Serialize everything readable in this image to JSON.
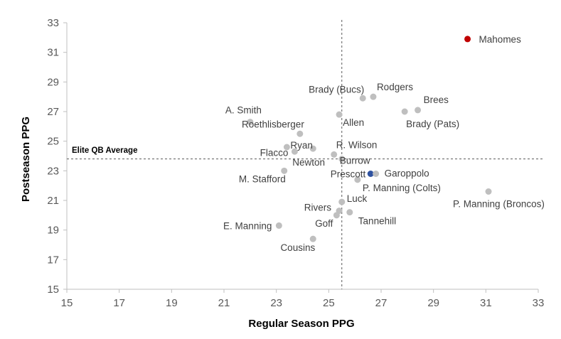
{
  "chart_data": {
    "type": "scatter",
    "title": "",
    "xlabel": "Regular Season PPG",
    "ylabel": "Postseason PPG",
    "xlim": [
      15,
      33
    ],
    "ylim": [
      15,
      33
    ],
    "xticks": [
      15,
      17,
      19,
      21,
      23,
      25,
      27,
      29,
      31,
      33
    ],
    "yticks": [
      15,
      17,
      19,
      21,
      23,
      25,
      27,
      29,
      31,
      33
    ],
    "grid": false,
    "colors": {
      "default": "#bfbfbf",
      "highlight_red": "#c00000",
      "highlight_blue": "#2f52a0"
    },
    "reference_lines": {
      "horizontal": {
        "y": 23.8,
        "label": "Elite QB Average"
      },
      "vertical": {
        "x": 25.5
      }
    },
    "points": [
      {
        "label": "Mahomes",
        "x": 30.3,
        "y": 31.9,
        "color": "#c00000"
      },
      {
        "label": "Rodgers",
        "x": 26.7,
        "y": 28.0,
        "color": "#bfbfbf"
      },
      {
        "label": "Brady (Bucs)",
        "x": 26.3,
        "y": 27.9,
        "color": "#bfbfbf"
      },
      {
        "label": "Brees",
        "x": 28.4,
        "y": 27.1,
        "color": "#bfbfbf"
      },
      {
        "label": "Brady (Pats)",
        "x": 27.9,
        "y": 27.0,
        "color": "#bfbfbf"
      },
      {
        "label": "Allen",
        "x": 25.4,
        "y": 26.8,
        "color": "#bfbfbf"
      },
      {
        "label": "A. Smith",
        "x": 22.0,
        "y": 26.3,
        "color": "#bfbfbf"
      },
      {
        "label": "Roethlisberger",
        "x": 23.9,
        "y": 25.5,
        "color": "#bfbfbf"
      },
      {
        "label": "Ryan",
        "x": 23.4,
        "y": 24.6,
        "color": "#bfbfbf"
      },
      {
        "label": "Flacco",
        "x": 23.7,
        "y": 24.3,
        "color": "#bfbfbf"
      },
      {
        "label": "R. Wilson",
        "x": 25.2,
        "y": 24.1,
        "color": "#bfbfbf"
      },
      {
        "label": "Burrow",
        "x": 25.5,
        "y": 23.8,
        "color": "#bfbfbf"
      },
      {
        "label": "Newton",
        "x": 24.4,
        "y": 24.5,
        "color": "#bfbfbf"
      },
      {
        "label": "M. Stafford",
        "x": 23.3,
        "y": 23.0,
        "color": "#bfbfbf"
      },
      {
        "label": "Prescott",
        "x": 26.6,
        "y": 22.8,
        "color": "#2f52a0"
      },
      {
        "label": "Garoppolo",
        "x": 26.8,
        "y": 22.8,
        "color": "#bfbfbf"
      },
      {
        "label": "P. Manning (Colts)",
        "x": 26.1,
        "y": 22.4,
        "color": "#bfbfbf"
      },
      {
        "label": "P. Manning (Broncos)",
        "x": 31.1,
        "y": 21.6,
        "color": "#bfbfbf"
      },
      {
        "label": "Luck",
        "x": 25.5,
        "y": 20.9,
        "color": "#bfbfbf"
      },
      {
        "label": "Rivers",
        "x": 25.4,
        "y": 20.3,
        "color": "#bfbfbf"
      },
      {
        "label": "Tannehill",
        "x": 25.8,
        "y": 20.2,
        "color": "#bfbfbf"
      },
      {
        "label": "Goff",
        "x": 25.3,
        "y": 20.0,
        "color": "#bfbfbf"
      },
      {
        "label": "E. Manning",
        "x": 23.1,
        "y": 19.3,
        "color": "#bfbfbf"
      },
      {
        "label": "Cousins",
        "x": 24.4,
        "y": 18.4,
        "color": "#bfbfbf"
      }
    ]
  }
}
